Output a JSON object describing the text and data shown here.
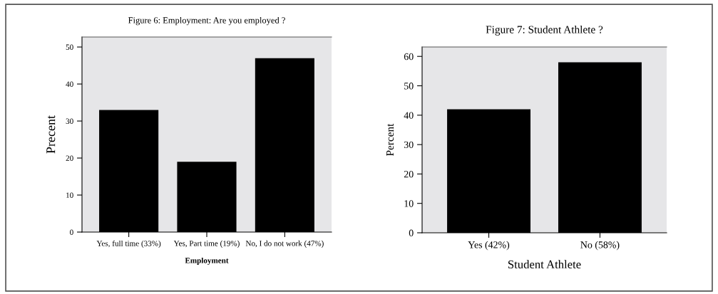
{
  "chart_data": [
    {
      "type": "bar",
      "title": "Figure 6: Employment: Are you employed ?",
      "xlabel": "Employment",
      "ylabel": "Precent",
      "categories": [
        "Yes, full time (33%)",
        "Yes, Part time (19%)",
        "No, I do not work (47%)"
      ],
      "values": [
        33,
        19,
        47
      ],
      "color": "#000000",
      "ylim": [
        0,
        52.7
      ],
      "yticks": [
        0,
        10,
        20,
        30,
        40,
        50
      ],
      "grid": false,
      "legend": false
    },
    {
      "type": "bar",
      "title": "Figure 7: Student Athlete ?",
      "xlabel": "Student Athlete",
      "ylabel": "Percent",
      "categories": [
        "Yes (42%)",
        "No (58%)"
      ],
      "values": [
        42,
        58
      ],
      "color": "#000000",
      "ylim": [
        0,
        63.2
      ],
      "yticks": [
        0,
        10,
        20,
        30,
        40,
        50,
        60
      ],
      "grid": false,
      "legend": false
    }
  ]
}
